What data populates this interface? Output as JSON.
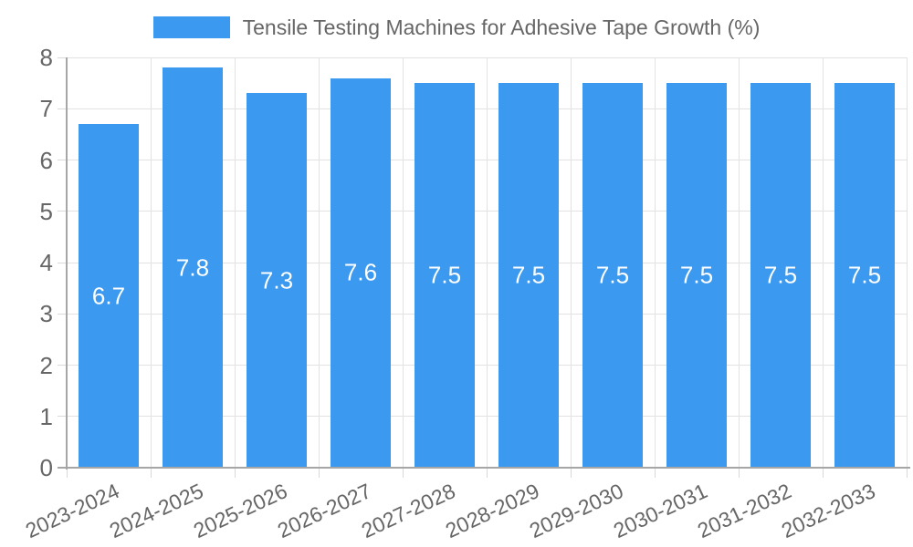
{
  "chart_data": {
    "type": "bar",
    "legend": {
      "position": "top",
      "label": "Tensile Testing Machines for Adhesive Tape Growth (%)"
    },
    "categories": [
      "2023-2024",
      "2024-2025",
      "2025-2026",
      "2026-2027",
      "2027-2028",
      "2028-2029",
      "2029-2030",
      "2030-2031",
      "2031-2032",
      "2032-2033"
    ],
    "values": [
      6.7,
      7.8,
      7.3,
      7.6,
      7.5,
      7.5,
      7.5,
      7.5,
      7.5,
      7.5
    ],
    "ylim": [
      0,
      8
    ],
    "ytick_step": 1,
    "yticks": [
      "0",
      "1",
      "2",
      "3",
      "4",
      "5",
      "6",
      "7",
      "8"
    ],
    "grid": true,
    "x_label_rotation_deg": -25,
    "colors": {
      "bar": "#3b99ef",
      "bar_label": "#ffffff",
      "grid": "#e2e2e2",
      "tick": "#d9d9d9",
      "axis": "#a6a6a6",
      "tick_text": "#666666",
      "legend_text": "#666666"
    }
  }
}
